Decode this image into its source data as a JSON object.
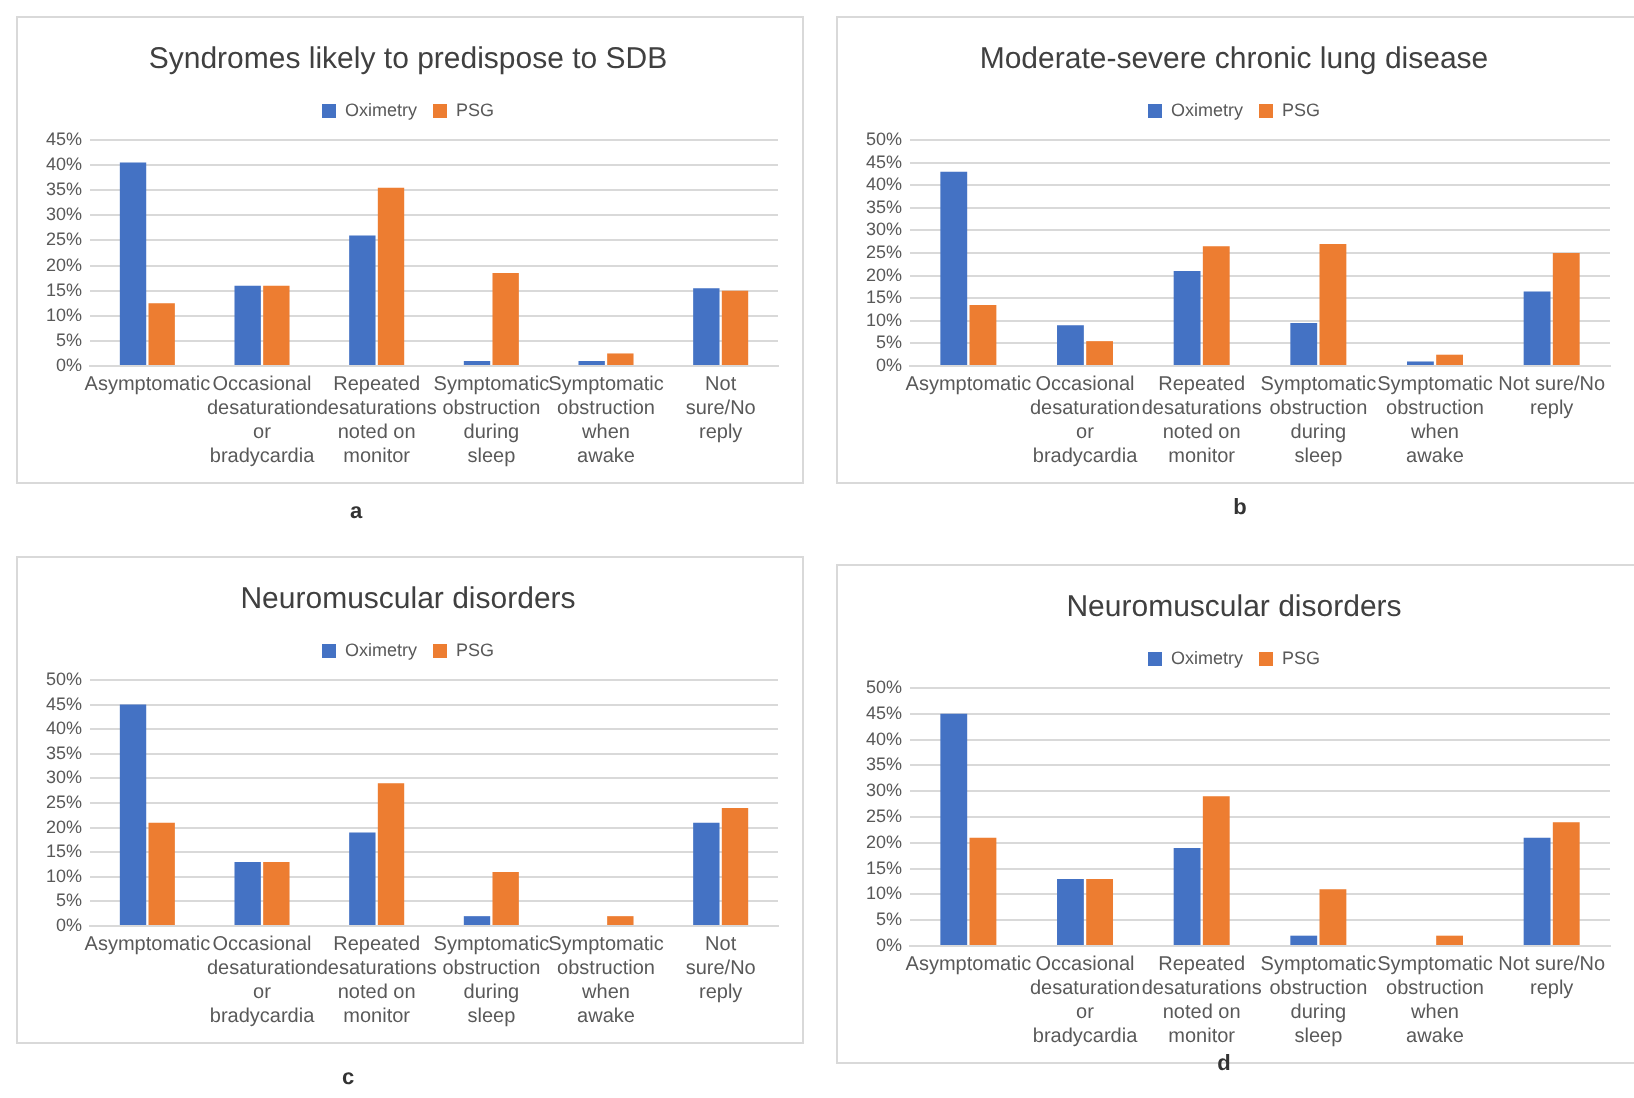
{
  "chart_data": [
    {
      "type": "bar",
      "title": "Syndromes likely to predispose to SDB",
      "annotations": [
        "a"
      ],
      "categories": [
        "Asymptomatic",
        "Occasional desaturation or bradycardia",
        "Repeated desaturations noted on monitor",
        "Symptomatic obstruction during sleep",
        "Symptomatic obstruction when awake",
        "Not sure/No reply"
      ],
      "series": [
        {
          "name": "Oximetry",
          "color": "#4472c4",
          "values": [
            40.5,
            16,
            26,
            1,
            1,
            15.5
          ]
        },
        {
          "name": "PSG",
          "color": "#ed7d31",
          "values": [
            12.5,
            16,
            35.5,
            18.5,
            2.5,
            15
          ]
        }
      ],
      "ylim": [
        0,
        45
      ],
      "yticks": [
        {
          "value": 0,
          "label": "0%"
        },
        {
          "value": 5,
          "label": "5%"
        },
        {
          "value": 10,
          "label": "10%"
        },
        {
          "value": 15,
          "label": "15%"
        },
        {
          "value": 20,
          "label": "20%"
        },
        {
          "value": 25,
          "label": "25%"
        },
        {
          "value": 30,
          "label": "30%"
        },
        {
          "value": 35,
          "label": "35%"
        },
        {
          "value": 40,
          "label": "40%"
        },
        {
          "value": 45,
          "label": "45%"
        }
      ],
      "grid": "y",
      "legend": "top"
    },
    {
      "type": "bar",
      "title": "Moderate-severe chronic lung disease",
      "annotations": [
        "b"
      ],
      "categories": [
        "Asymptomatic",
        "Occasional desaturation or bradycardia",
        "Repeated desaturations noted on monitor",
        "Symptomatic obstruction during sleep",
        "Symptomatic obstruction when awake",
        "Not sure/No reply"
      ],
      "series": [
        {
          "name": "Oximetry",
          "color": "#4472c4",
          "values": [
            43,
            9,
            21,
            9.5,
            1,
            16.5
          ]
        },
        {
          "name": "PSG",
          "color": "#ed7d31",
          "values": [
            13.5,
            5.5,
            26.5,
            27,
            2.5,
            25
          ]
        }
      ],
      "ylim": [
        0,
        50
      ],
      "yticks": [
        {
          "value": 0,
          "label": "0%"
        },
        {
          "value": 5,
          "label": "5%"
        },
        {
          "value": 10,
          "label": "10%"
        },
        {
          "value": 15,
          "label": "15%"
        },
        {
          "value": 20,
          "label": "20%"
        },
        {
          "value": 25,
          "label": "25%"
        },
        {
          "value": 30,
          "label": "30%"
        },
        {
          "value": 35,
          "label": "35%"
        },
        {
          "value": 40,
          "label": "40%"
        },
        {
          "value": 45,
          "label": "45%"
        },
        {
          "value": 50,
          "label": "50%"
        }
      ],
      "grid": "y",
      "legend": "top"
    },
    {
      "type": "bar",
      "title": "Neuromuscular disorders",
      "annotations": [
        "c"
      ],
      "categories": [
        "Asymptomatic",
        "Occasional desaturation or bradycardia",
        "Repeated desaturations noted on monitor",
        "Symptomatic obstruction during sleep",
        "Symptomatic obstruction when awake",
        "Not sure/No reply"
      ],
      "series": [
        {
          "name": "Oximetry",
          "color": "#4472c4",
          "values": [
            45,
            13,
            19,
            2,
            0,
            21
          ]
        },
        {
          "name": "PSG",
          "color": "#ed7d31",
          "values": [
            21,
            13,
            29,
            11,
            2,
            24
          ]
        }
      ],
      "ylim": [
        0,
        50
      ],
      "yticks": [
        {
          "value": 0,
          "label": "0%"
        },
        {
          "value": 5,
          "label": "5%"
        },
        {
          "value": 10,
          "label": "10%"
        },
        {
          "value": 15,
          "label": "15%"
        },
        {
          "value": 20,
          "label": "20%"
        },
        {
          "value": 25,
          "label": "25%"
        },
        {
          "value": 30,
          "label": "30%"
        },
        {
          "value": 35,
          "label": "35%"
        },
        {
          "value": 40,
          "label": "40%"
        },
        {
          "value": 45,
          "label": "45%"
        },
        {
          "value": 50,
          "label": "50%"
        }
      ],
      "grid": "y",
      "legend": "top"
    },
    {
      "type": "bar",
      "title": "Neuromuscular disorders",
      "annotations": [
        "d"
      ],
      "categories": [
        "Asymptomatic",
        "Occasional desaturation or bradycardia",
        "Repeated desaturations noted on monitor",
        "Symptomatic obstruction during sleep",
        "Symptomatic obstruction when awake",
        "Not sure/No reply"
      ],
      "series": [
        {
          "name": "Oximetry",
          "color": "#4472c4",
          "values": [
            45,
            13,
            19,
            2,
            0,
            21
          ]
        },
        {
          "name": "PSG",
          "color": "#ed7d31",
          "values": [
            21,
            13,
            29,
            11,
            2,
            24
          ]
        }
      ],
      "ylim": [
        0,
        50
      ],
      "yticks": [
        {
          "value": 0,
          "label": "0%"
        },
        {
          "value": 5,
          "label": "5%"
        },
        {
          "value": 10,
          "label": "10%"
        },
        {
          "value": 15,
          "label": "15%"
        },
        {
          "value": 20,
          "label": "20%"
        },
        {
          "value": 25,
          "label": "25%"
        },
        {
          "value": 30,
          "label": "30%"
        },
        {
          "value": 35,
          "label": "35%"
        },
        {
          "value": 40,
          "label": "40%"
        },
        {
          "value": 45,
          "label": "45%"
        },
        {
          "value": 50,
          "label": "50%"
        }
      ],
      "grid": "y",
      "legend": "top"
    }
  ]
}
